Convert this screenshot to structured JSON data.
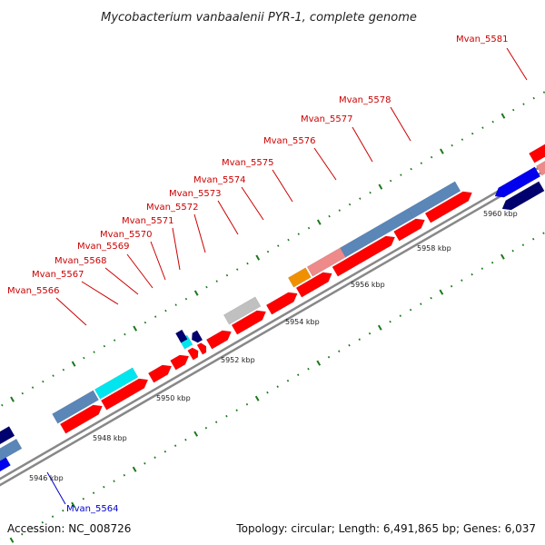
{
  "title": "Mycobacterium vanbaalenii PYR-1, complete genome",
  "accession": "Accession: NC_008726",
  "summary": "Topology: circular; Length: 6,491,865 bp; Genes: 6,037",
  "colors": {
    "forward_red": "#ff0000",
    "reverse_blue": "#0000ee",
    "backbone": "#888888",
    "label_red": "#cc0000",
    "label_blue": "#0000cc",
    "tick_green": "#1a7a1a",
    "steel_blue": "#5a86b8",
    "navy": "#00006e",
    "cyan": "#00e5ee",
    "pink": "#ee8a8a",
    "orange": "#f09000",
    "gray": "#c0c0c0"
  },
  "kbp_labels": [
    "5946 kbp",
    "5948 kbp",
    "5950 kbp",
    "5952 kbp",
    "5954 kbp",
    "5956 kbp",
    "5958 kbp",
    "5960 kbp"
  ],
  "gene_labels": [
    {
      "text": "Mvan_5581",
      "strand": "forward"
    },
    {
      "text": "Mvan_5578",
      "strand": "forward"
    },
    {
      "text": "Mvan_5577",
      "strand": "forward"
    },
    {
      "text": "Mvan_5576",
      "strand": "forward"
    },
    {
      "text": "Mvan_5575",
      "strand": "forward"
    },
    {
      "text": "Mvan_5574",
      "strand": "forward"
    },
    {
      "text": "Mvan_5573",
      "strand": "forward"
    },
    {
      "text": "Mvan_5572",
      "strand": "forward"
    },
    {
      "text": "Mvan_5571",
      "strand": "forward"
    },
    {
      "text": "Mvan_5570",
      "strand": "forward"
    },
    {
      "text": "Mvan_5569",
      "strand": "forward"
    },
    {
      "text": "Mvan_5568",
      "strand": "forward"
    },
    {
      "text": "Mvan_5567",
      "strand": "forward"
    },
    {
      "text": "Mvan_5566",
      "strand": "forward"
    },
    {
      "text": "Mvan_5564",
      "strand": "reverse"
    }
  ]
}
